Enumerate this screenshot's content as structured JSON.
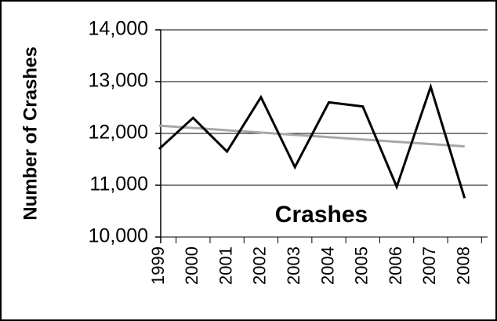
{
  "chart_data": {
    "type": "line",
    "ylabel": "Number of Crashes",
    "annotation": "Crashes",
    "categories": [
      "1999",
      "2000",
      "2001",
      "2002",
      "2003",
      "2004",
      "2005",
      "2006",
      "2007",
      "2008"
    ],
    "series": [
      {
        "name": "Crashes",
        "color": "#000000",
        "values": [
          11700,
          12300,
          11650,
          12700,
          11350,
          12600,
          12520,
          10970,
          12900,
          10750
        ]
      }
    ],
    "trendline": {
      "start": 12150,
      "end": 11750,
      "color": "#a8a8a8"
    },
    "ylim": [
      10000,
      14000
    ],
    "yticks": [
      {
        "value": 10000,
        "label": "10,000"
      },
      {
        "value": 11000,
        "label": "11,000"
      },
      {
        "value": 12000,
        "label": "12,000"
      },
      {
        "value": 13000,
        "label": "13,000"
      },
      {
        "value": 14000,
        "label": "14,000"
      }
    ],
    "grid": true
  }
}
